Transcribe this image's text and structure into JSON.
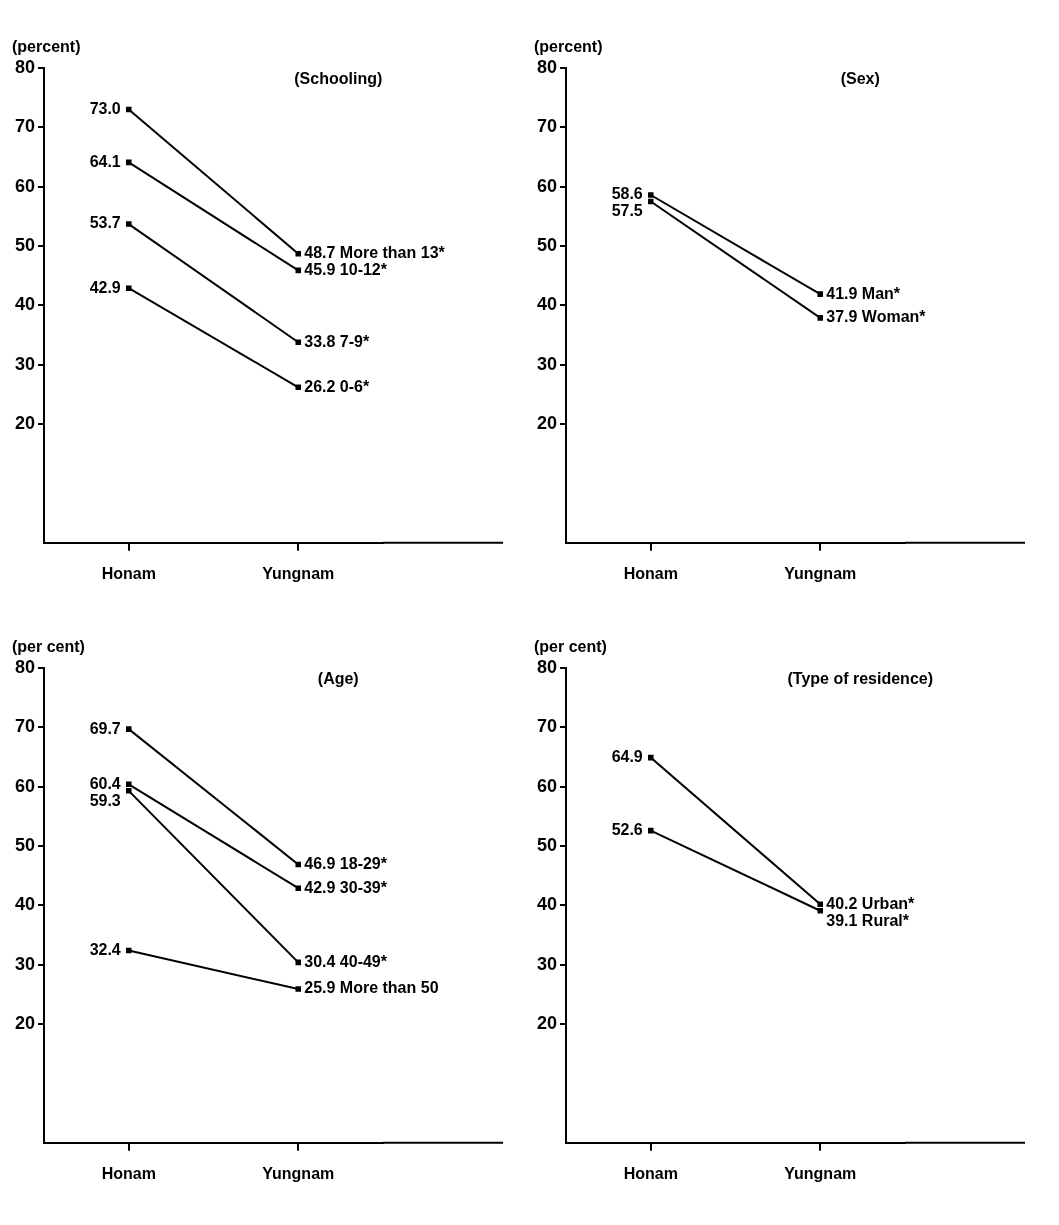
{
  "chart_data": [
    {
      "type": "line",
      "title": "(Schooling)",
      "ylabel": "(percent)",
      "categories": [
        "Honam",
        "Yungnam"
      ],
      "ylim": [
        0,
        80
      ],
      "yticks": [
        20,
        30,
        40,
        50,
        60,
        70,
        80
      ],
      "marker": "square",
      "series": [
        {
          "name": "More than 13*",
          "color": "#000000",
          "values": [
            73.0,
            48.7
          ],
          "value_labels": [
            "73.0",
            "48.7"
          ]
        },
        {
          "name": "10-12*",
          "color": "#000000",
          "values": [
            64.1,
            45.9
          ],
          "value_labels": [
            "64.1",
            "45.9"
          ]
        },
        {
          "name": "7-9*",
          "color": "#000000",
          "values": [
            53.7,
            33.8
          ],
          "value_labels": [
            "53.7",
            "33.8"
          ]
        },
        {
          "name": "0-6*",
          "color": "#000000",
          "values": [
            42.9,
            26.2
          ],
          "value_labels": [
            "42.9",
            "26.2"
          ]
        }
      ]
    },
    {
      "type": "line",
      "title": "(Sex)",
      "ylabel": "(percent)",
      "categories": [
        "Honam",
        "Yungnam"
      ],
      "ylim": [
        0,
        80
      ],
      "yticks": [
        20,
        30,
        40,
        50,
        60,
        70,
        80
      ],
      "marker": "square",
      "series": [
        {
          "name": "Man*",
          "color": "#000000",
          "values": [
            58.6,
            41.9
          ],
          "value_labels": [
            "58.6",
            "41.9"
          ]
        },
        {
          "name": "Woman*",
          "color": "#000000",
          "values": [
            57.5,
            37.9
          ],
          "value_labels": [
            "57.5",
            "37.9"
          ]
        }
      ]
    },
    {
      "type": "line",
      "title": "(Age)",
      "ylabel": "(per cent)",
      "categories": [
        "Honam",
        "Yungnam"
      ],
      "ylim": [
        0,
        80
      ],
      "yticks": [
        20,
        30,
        40,
        50,
        60,
        70,
        80
      ],
      "marker": "square",
      "series": [
        {
          "name": "18-29*",
          "color": "#000000",
          "values": [
            69.7,
            46.9
          ],
          "value_labels": [
            "69.7",
            "46.9"
          ]
        },
        {
          "name": "30-39*",
          "color": "#000000",
          "values": [
            60.4,
            42.9
          ],
          "value_labels": [
            "60.4",
            "42.9"
          ]
        },
        {
          "name": "40-49*",
          "color": "#000000",
          "values": [
            59.3,
            30.4
          ],
          "value_labels": [
            "59.3",
            "30.4"
          ]
        },
        {
          "name": "More than 50",
          "color": "#000000",
          "values": [
            32.4,
            25.9
          ],
          "value_labels": [
            "32.4",
            "25.9"
          ]
        }
      ]
    },
    {
      "type": "line",
      "title": "(Type of residence)",
      "ylabel": "(per cent)",
      "categories": [
        "Honam",
        "Yungnam"
      ],
      "ylim": [
        0,
        80
      ],
      "yticks": [
        20,
        30,
        40,
        50,
        60,
        70,
        80
      ],
      "marker": "square",
      "series": [
        {
          "name": "Urban*",
          "color": "#000000",
          "values": [
            64.9,
            40.2
          ],
          "value_labels": [
            "64.9",
            "40.2"
          ]
        },
        {
          "name": "Rural*",
          "color": "#000000",
          "values": [
            52.6,
            39.1
          ],
          "value_labels": [
            "52.6",
            "39.1"
          ]
        }
      ]
    }
  ]
}
